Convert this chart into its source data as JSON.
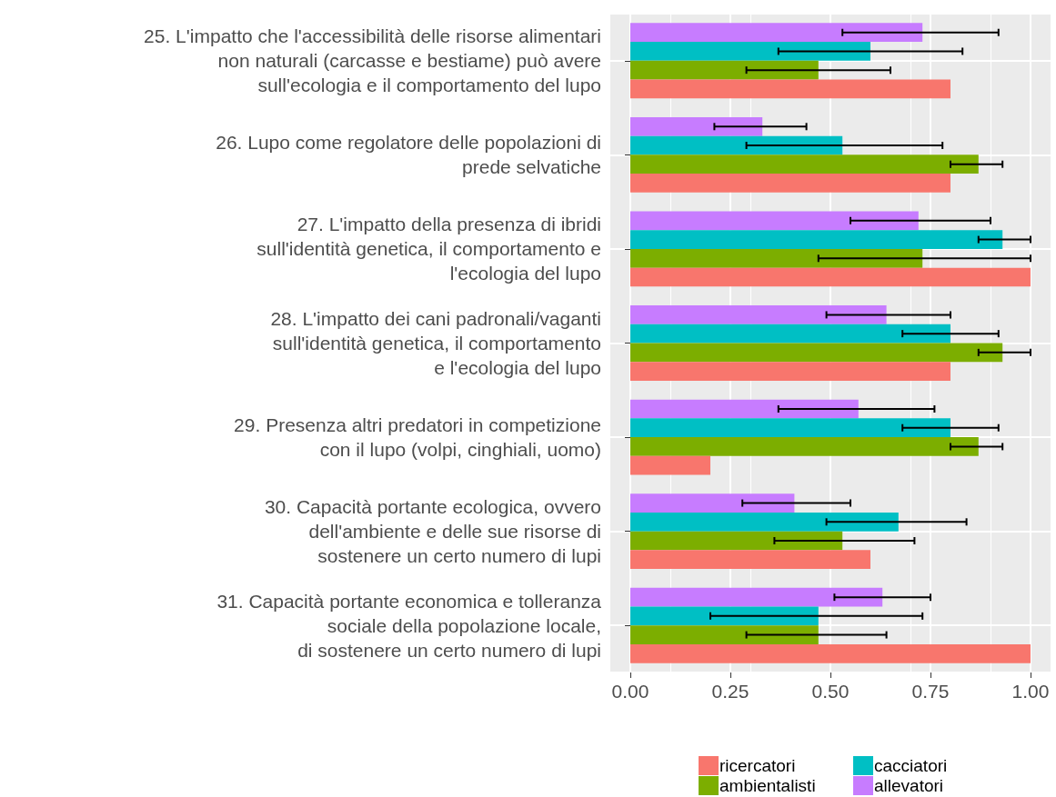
{
  "chart_data": {
    "type": "bar",
    "orientation": "horizontal",
    "categories": [
      "25. L'impatto che l'accessibilità delle risorse alimentari\nnon naturali (carcasse e bestiame) può avere\nsull'ecologia e il comportamento del lupo",
      "26. Lupo come regolatore delle popolazioni di\nprede selvatiche",
      "27. L'impatto della presenza di ibridi\nsull'identità genetica, il comportamento e\nl'ecologia del lupo",
      "28. L'impatto dei cani padronali/vaganti\nsull'identità genetica, il comportamento\ne l'ecologia del lupo",
      "29. Presenza altri predatori in competizione\ncon il lupo (volpi, cinghiali, uomo)",
      "30. Capacità portante ecologica, ovvero\ndell'ambiente e delle sue risorse di\nsostenere un certo numero di lupi",
      "31. Capacità portante economica e tolleranza\nsociale della popolazione locale,\ndi sostenere un certo numero di lupi"
    ],
    "series": [
      {
        "name": "ricercatori",
        "color": "#f8766d",
        "values": [
          0.8,
          0.8,
          1.0,
          0.8,
          0.2,
          0.6,
          1.0
        ]
      },
      {
        "name": "ambientalisti",
        "color": "#7cae00",
        "values": [
          0.47,
          0.87,
          0.73,
          0.93,
          0.87,
          0.53,
          0.47
        ],
        "errors": [
          [
            0.29,
            0.65
          ],
          [
            0.8,
            0.93
          ],
          [
            0.47,
            1.0
          ],
          [
            0.87,
            1.0
          ],
          [
            0.8,
            0.93
          ],
          [
            0.36,
            0.71
          ],
          [
            0.29,
            0.64
          ]
        ]
      },
      {
        "name": "cacciatori",
        "color": "#00bfc4",
        "values": [
          0.6,
          0.53,
          0.93,
          0.8,
          0.8,
          0.67,
          0.47
        ],
        "errors": [
          [
            0.37,
            0.83
          ],
          [
            0.29,
            0.78
          ],
          [
            0.87,
            1.0
          ],
          [
            0.68,
            0.92
          ],
          [
            0.68,
            0.92
          ],
          [
            0.49,
            0.84
          ],
          [
            0.2,
            0.73
          ]
        ]
      },
      {
        "name": "allevatori",
        "color": "#c77cff",
        "values": [
          0.73,
          0.33,
          0.72,
          0.64,
          0.57,
          0.41,
          0.63
        ],
        "errors": [
          [
            0.53,
            0.92
          ],
          [
            0.21,
            0.44
          ],
          [
            0.55,
            0.9
          ],
          [
            0.49,
            0.8
          ],
          [
            0.37,
            0.76
          ],
          [
            0.28,
            0.55
          ],
          [
            0.51,
            0.75
          ]
        ]
      }
    ],
    "xlim": [
      -0.05,
      1.05
    ],
    "xticks": [
      {
        "value": 0,
        "label": "0.00"
      },
      {
        "value": 0.25,
        "label": "0.25"
      },
      {
        "value": 0.5,
        "label": "0.50"
      },
      {
        "value": 0.75,
        "label": "0.75"
      },
      {
        "value": 1,
        "label": "1.00"
      }
    ],
    "grid": true,
    "legend": "bottom right"
  }
}
